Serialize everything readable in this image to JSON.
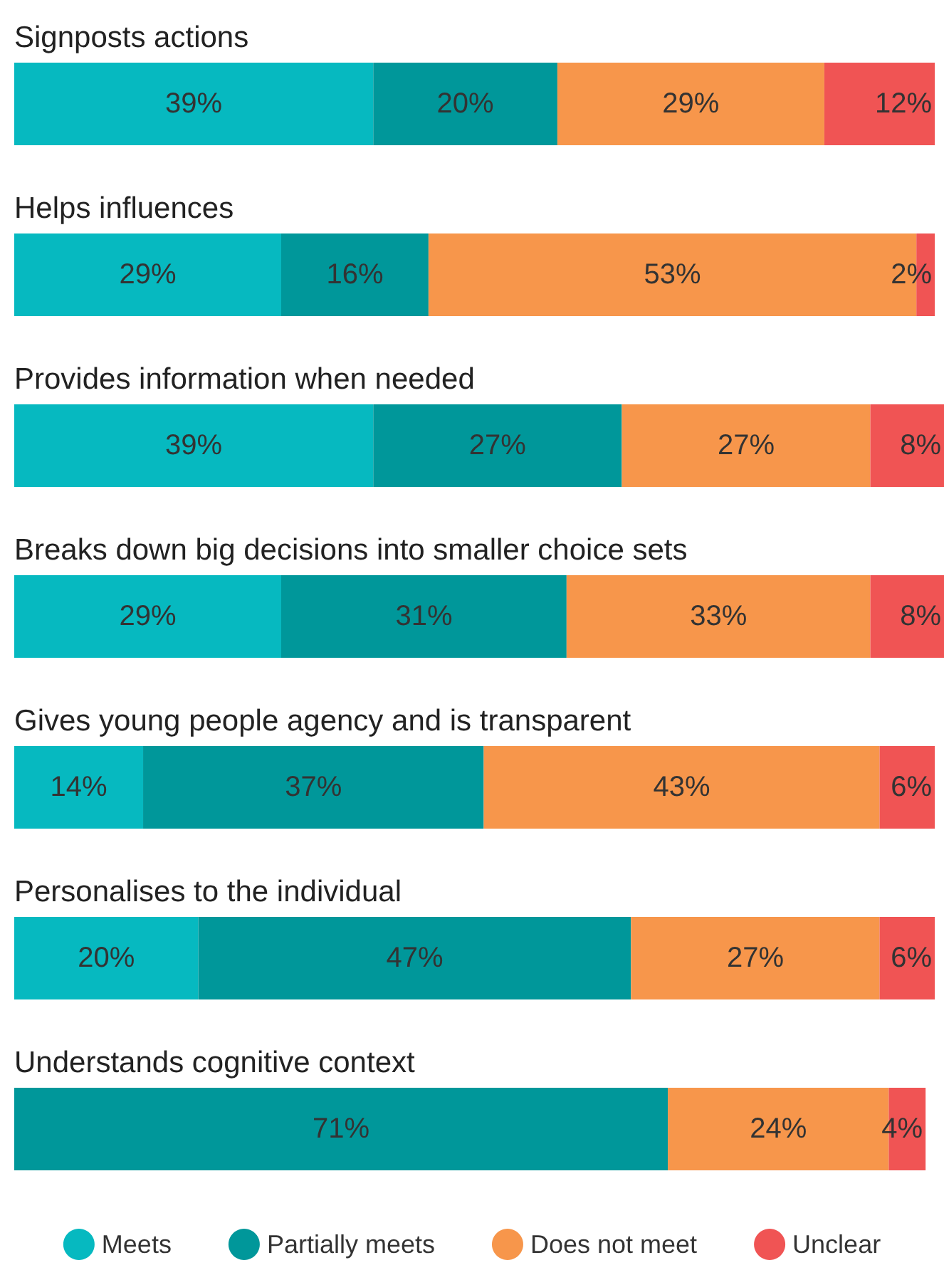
{
  "chart_data": {
    "type": "bar",
    "orientation": "horizontal",
    "stacked": true,
    "legend": "bottom",
    "categories": [
      "Signposts actions",
      "Helps influences",
      "Provides information when needed",
      "Breaks down big decisions into smaller choice sets",
      "Gives young people agency and is transparent",
      "Personalises to the individual",
      "Understands cognitive context"
    ],
    "series": [
      {
        "name": "Meets",
        "color": "#06b9c0",
        "values": [
          39,
          29,
          39,
          29,
          14,
          20,
          null
        ],
        "value_labels": [
          "39%",
          "29%",
          "39%",
          "29%",
          "14%",
          "20%",
          null
        ]
      },
      {
        "name": "Partially meets",
        "color": "#00979a",
        "values": [
          20,
          16,
          27,
          31,
          37,
          47,
          71
        ],
        "value_labels": [
          "20%",
          "16%",
          "27%",
          "31%",
          "37%",
          "47%",
          "71%"
        ]
      },
      {
        "name": "Does not meet",
        "color": "#f7964b",
        "values": [
          29,
          53,
          27,
          33,
          43,
          27,
          24
        ],
        "value_labels": [
          "29%",
          "53%",
          "27%",
          "33%",
          "43%",
          "27%",
          "24%"
        ]
      },
      {
        "name": "Unclear",
        "color": "#f05454",
        "values": [
          12,
          2,
          8,
          8,
          6,
          6,
          4
        ],
        "value_labels": [
          "12%",
          "2%",
          "8%",
          "8%",
          "6%",
          "6%",
          "4%"
        ]
      }
    ]
  }
}
